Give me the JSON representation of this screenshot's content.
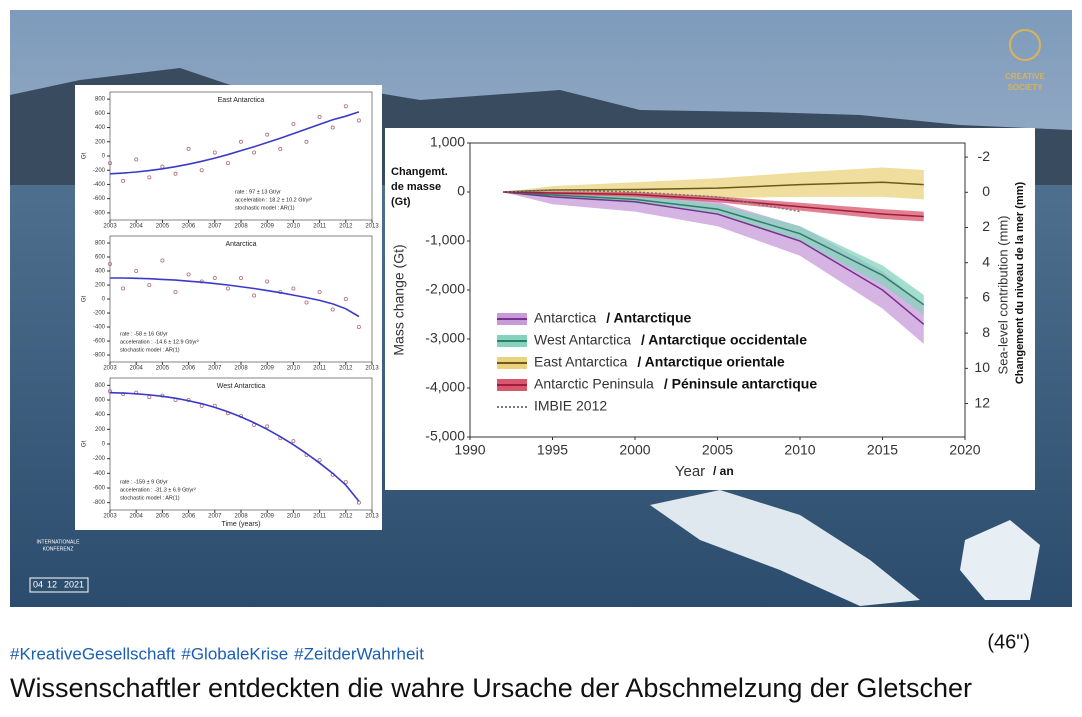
{
  "video": {
    "logo": [
      "CREATIVE",
      "SOCIETY"
    ],
    "event_badge": [
      "INTERNATIONALE",
      "KONFERENZ"
    ],
    "event_date": [
      "04",
      "12",
      "2021"
    ],
    "duration": "(46\")"
  },
  "hashtags": [
    "#KreativeGesellschaft",
    "#GlobaleKrise",
    "#ZeitderWahrheit"
  ],
  "title": "Wissenschaftler entdeckten die wahre Ursache der Abschmelzung der Gletscher",
  "chart_data": [
    {
      "type": "line",
      "title": "East Antarctica",
      "ylabel": "Gt",
      "x": [
        2003,
        2003.5,
        2004,
        2004.5,
        2005,
        2005.5,
        2006,
        2006.5,
        2007,
        2007.5,
        2008,
        2008.5,
        2009,
        2009.5,
        2010,
        2010.5,
        2011,
        2011.5,
        2012,
        2012.5
      ],
      "xlim": [
        2003,
        2013
      ],
      "xticks": [
        2003,
        2004,
        2005,
        2006,
        2007,
        2008,
        2009,
        2010,
        2011,
        2012,
        2013
      ],
      "ylim": [
        -900,
        900
      ],
      "yticks": [
        -800,
        -600,
        -400,
        -200,
        0,
        200,
        400,
        600,
        800
      ],
      "annotations": [
        "rate : 97 ± 13 Gt/yr",
        "acceleration : 18.2 ± 10.2 Gt/yr²",
        "stochastic model : AR(1)"
      ],
      "annotation_corner": "lower right",
      "series": [
        {
          "style": "points",
          "color": "#b0707a",
          "values": [
            -100,
            -350,
            -50,
            -300,
            -150,
            -250,
            100,
            -200,
            50,
            -100,
            200,
            50,
            300,
            100,
            450,
            200,
            550,
            400,
            700,
            500
          ]
        },
        {
          "style": "line",
          "color": "#3a3ac8",
          "values": [
            -250,
            -240,
            -225,
            -205,
            -180,
            -150,
            -115,
            -75,
            -30,
            20,
            75,
            130,
            190,
            250,
            315,
            380,
            445,
            510,
            560,
            620
          ]
        }
      ]
    },
    {
      "type": "line",
      "title": "Antarctica",
      "ylabel": "Gt",
      "x": [
        2003,
        2003.5,
        2004,
        2004.5,
        2005,
        2005.5,
        2006,
        2006.5,
        2007,
        2007.5,
        2008,
        2008.5,
        2009,
        2009.5,
        2010,
        2010.5,
        2011,
        2011.5,
        2012,
        2012.5
      ],
      "xlim": [
        2003,
        2013
      ],
      "xticks": [
        2003,
        2004,
        2005,
        2006,
        2007,
        2008,
        2009,
        2010,
        2011,
        2012,
        2013
      ],
      "ylim": [
        -900,
        900
      ],
      "yticks": [
        -800,
        -600,
        -400,
        -200,
        0,
        200,
        400,
        600,
        800
      ],
      "annotations": [
        "rate : -58 ± 16 Gt/yr",
        "acceleration : -14.6 ± 12.9 Gt/yr²",
        "stochastic model : AR(1)"
      ],
      "annotation_corner": "lower left",
      "series": [
        {
          "style": "points",
          "color": "#b0707a",
          "values": [
            500,
            150,
            400,
            200,
            550,
            100,
            350,
            250,
            300,
            150,
            300,
            50,
            250,
            100,
            150,
            -50,
            100,
            -150,
            0,
            -400
          ]
        },
        {
          "style": "line",
          "color": "#3a3ac8",
          "values": [
            300,
            300,
            295,
            290,
            280,
            270,
            255,
            240,
            220,
            200,
            175,
            150,
            120,
            90,
            55,
            20,
            -20,
            -70,
            -140,
            -250
          ]
        }
      ]
    },
    {
      "type": "line",
      "title": "West Antarctica",
      "ylabel": "Gt",
      "xlabel": "Time (years)",
      "x": [
        2003,
        2003.5,
        2004,
        2004.5,
        2005,
        2005.5,
        2006,
        2006.5,
        2007,
        2007.5,
        2008,
        2008.5,
        2009,
        2009.5,
        2010,
        2010.5,
        2011,
        2011.5,
        2012,
        2012.5
      ],
      "xlim": [
        2003,
        2013
      ],
      "xticks": [
        2003,
        2004,
        2005,
        2006,
        2007,
        2008,
        2009,
        2010,
        2011,
        2012,
        2013
      ],
      "ylim": [
        -900,
        900
      ],
      "yticks": [
        -800,
        -600,
        -400,
        -200,
        0,
        200,
        400,
        600,
        800
      ],
      "annotations": [
        "rate : -159 ± 9 Gt/yr",
        "acceleration : -31.3 ± 6.9 Gt/yr²",
        "stochastic model : AR(1)"
      ],
      "annotation_corner": "lower left",
      "series": [
        {
          "style": "points",
          "color": "#b0707a",
          "values": [
            720,
            680,
            700,
            640,
            660,
            600,
            600,
            520,
            520,
            420,
            380,
            260,
            240,
            80,
            40,
            -150,
            -220,
            -420,
            -520,
            -800
          ]
        },
        {
          "style": "line",
          "color": "#3a3ac8",
          "values": [
            700,
            695,
            685,
            670,
            650,
            625,
            590,
            550,
            500,
            440,
            370,
            290,
            200,
            100,
            -10,
            -130,
            -260,
            -400,
            -560,
            -780
          ]
        }
      ]
    },
    {
      "type": "line",
      "xlabel": "Year",
      "xlabel_fr": "/ an",
      "ylabel": "Mass change (Gt)",
      "ylabel_fr": [
        "Changemt.",
        "de masse",
        "(Gt)"
      ],
      "y2label": "Sea-level contribution (mm)",
      "y2label_fr": "Changement du niveau de la mer (mm)",
      "x": [
        1992,
        1995,
        2000,
        2005,
        2010,
        2015,
        2017.5
      ],
      "xlim": [
        1990,
        2020
      ],
      "xticks": [
        1990,
        1995,
        2000,
        2005,
        2010,
        2015,
        2020
      ],
      "ylim": [
        -5000,
        1000
      ],
      "yticks": [
        {
          "value": -5000,
          "label": "-5,000"
        },
        {
          "value": -4000,
          "label": "-4,000"
        },
        {
          "value": -3000,
          "label": "-3,000"
        },
        {
          "value": -2000,
          "label": "-2,000"
        },
        {
          "value": -1000,
          "label": "-1,000"
        },
        0,
        {
          "value": 1000,
          "label": "1,000"
        }
      ],
      "y2lim": [
        13.9,
        -2.8
      ],
      "y2ticks": [
        -2,
        0,
        2,
        4,
        6,
        8,
        10,
        12
      ],
      "legend": "lower left",
      "series": [
        {
          "name": "Antarctica",
          "name_fr": "/ Antarctique",
          "color": "#7b2f8e",
          "band_color": "#c79ad8",
          "values": [
            0,
            -100,
            -200,
            -450,
            -1000,
            -2000,
            -2700
          ],
          "error": [
            0,
            150,
            200,
            250,
            300,
            380,
            400
          ]
        },
        {
          "name": "West Antarctica",
          "name_fr": "/ Antarctique occidentale",
          "color": "#2e7d6b",
          "band_color": "#86d3bd",
          "values": [
            0,
            -60,
            -150,
            -350,
            -850,
            -1700,
            -2300
          ],
          "error": [
            0,
            50,
            80,
            100,
            150,
            200,
            200
          ]
        },
        {
          "name": "East Antarctica",
          "name_fr": "/ Antarctique orientale",
          "color": "#6b5a1e",
          "band_color": "#ead37c",
          "values": [
            0,
            40,
            50,
            80,
            150,
            200,
            150
          ],
          "error": [
            0,
            80,
            150,
            200,
            250,
            300,
            300
          ]
        },
        {
          "name": "Antarctic Peninsula",
          "name_fr": "/ Péninsule antarctique",
          "color": "#a01c3c",
          "band_color": "#d8566e",
          "values": [
            0,
            -20,
            -50,
            -150,
            -300,
            -450,
            -500
          ],
          "error": [
            0,
            30,
            50,
            60,
            80,
            100,
            100
          ]
        },
        {
          "name": "IMBIE 2012",
          "color": "#777777",
          "dash": "dotted",
          "values": [
            0,
            40,
            0,
            -100,
            -400,
            null,
            null
          ]
        }
      ]
    }
  ]
}
